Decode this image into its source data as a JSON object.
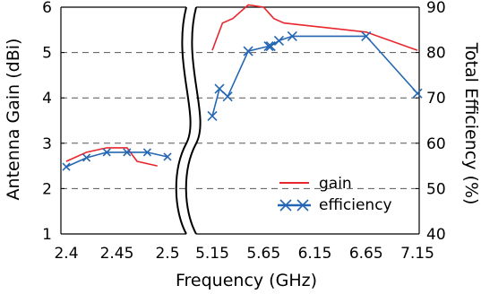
{
  "chart_data": {
    "type": "line",
    "xlabel": "Frequency (GHz)",
    "ylabel_left": "Antenna Gain (dBi)",
    "ylabel_right": "Total Efficiency (%)",
    "axis_break": "between 2.5 and 5.15 GHz",
    "grid": "dashed horizontal",
    "legend_position": "lower-right",
    "segments": [
      {
        "xlim": [
          2.4,
          2.5
        ],
        "xticks": [
          "2.4",
          "2.45",
          "2.5"
        ],
        "xtick_values": [
          2.4,
          2.45,
          2.5
        ]
      },
      {
        "xlim": [
          5.15,
          7.15
        ],
        "xticks": [
          "5.15",
          "5.65",
          "6.15",
          "6.65",
          "7.15"
        ],
        "xtick_values": [
          5.15,
          5.65,
          6.15,
          6.65,
          7.15
        ]
      }
    ],
    "y_left": {
      "ylim": [
        1,
        6
      ],
      "ticks": [
        "1",
        "2",
        "3",
        "4",
        "5",
        "6"
      ]
    },
    "y_right": {
      "ylim": [
        40,
        90
      ],
      "ticks": [
        "40",
        "50",
        "60",
        "70",
        "80",
        "90"
      ]
    },
    "series": [
      {
        "name": "gain",
        "axis": "left",
        "color": "#e8262d",
        "marker": "none",
        "points": [
          [
            2.4,
            2.6
          ],
          [
            2.42,
            2.8
          ],
          [
            2.44,
            2.9
          ],
          [
            2.46,
            2.9
          ],
          [
            2.47,
            2.6
          ],
          [
            2.49,
            2.5
          ],
          [
            5.15,
            5.05
          ],
          [
            5.25,
            5.65
          ],
          [
            5.35,
            5.75
          ],
          [
            5.5,
            6.05
          ],
          [
            5.65,
            6.0
          ],
          [
            5.75,
            5.75
          ],
          [
            5.85,
            5.65
          ],
          [
            6.65,
            5.45
          ],
          [
            7.15,
            5.05
          ]
        ]
      },
      {
        "name": "efficiency",
        "axis": "right",
        "color": "#2466b3",
        "marker": "x",
        "points": [
          [
            2.4,
            54.8
          ],
          [
            2.42,
            56.8
          ],
          [
            2.44,
            58.0
          ],
          [
            2.46,
            58.0
          ],
          [
            2.48,
            58.0
          ],
          [
            2.5,
            57.0
          ],
          [
            5.15,
            66.0
          ],
          [
            5.22,
            72.0
          ],
          [
            5.3,
            70.3
          ],
          [
            5.5,
            80.3
          ],
          [
            5.7,
            81.4
          ],
          [
            5.72,
            81.4
          ],
          [
            5.8,
            82.6
          ],
          [
            5.93,
            83.6
          ],
          [
            6.65,
            83.6
          ],
          [
            7.15,
            71.0
          ]
        ]
      }
    ]
  }
}
